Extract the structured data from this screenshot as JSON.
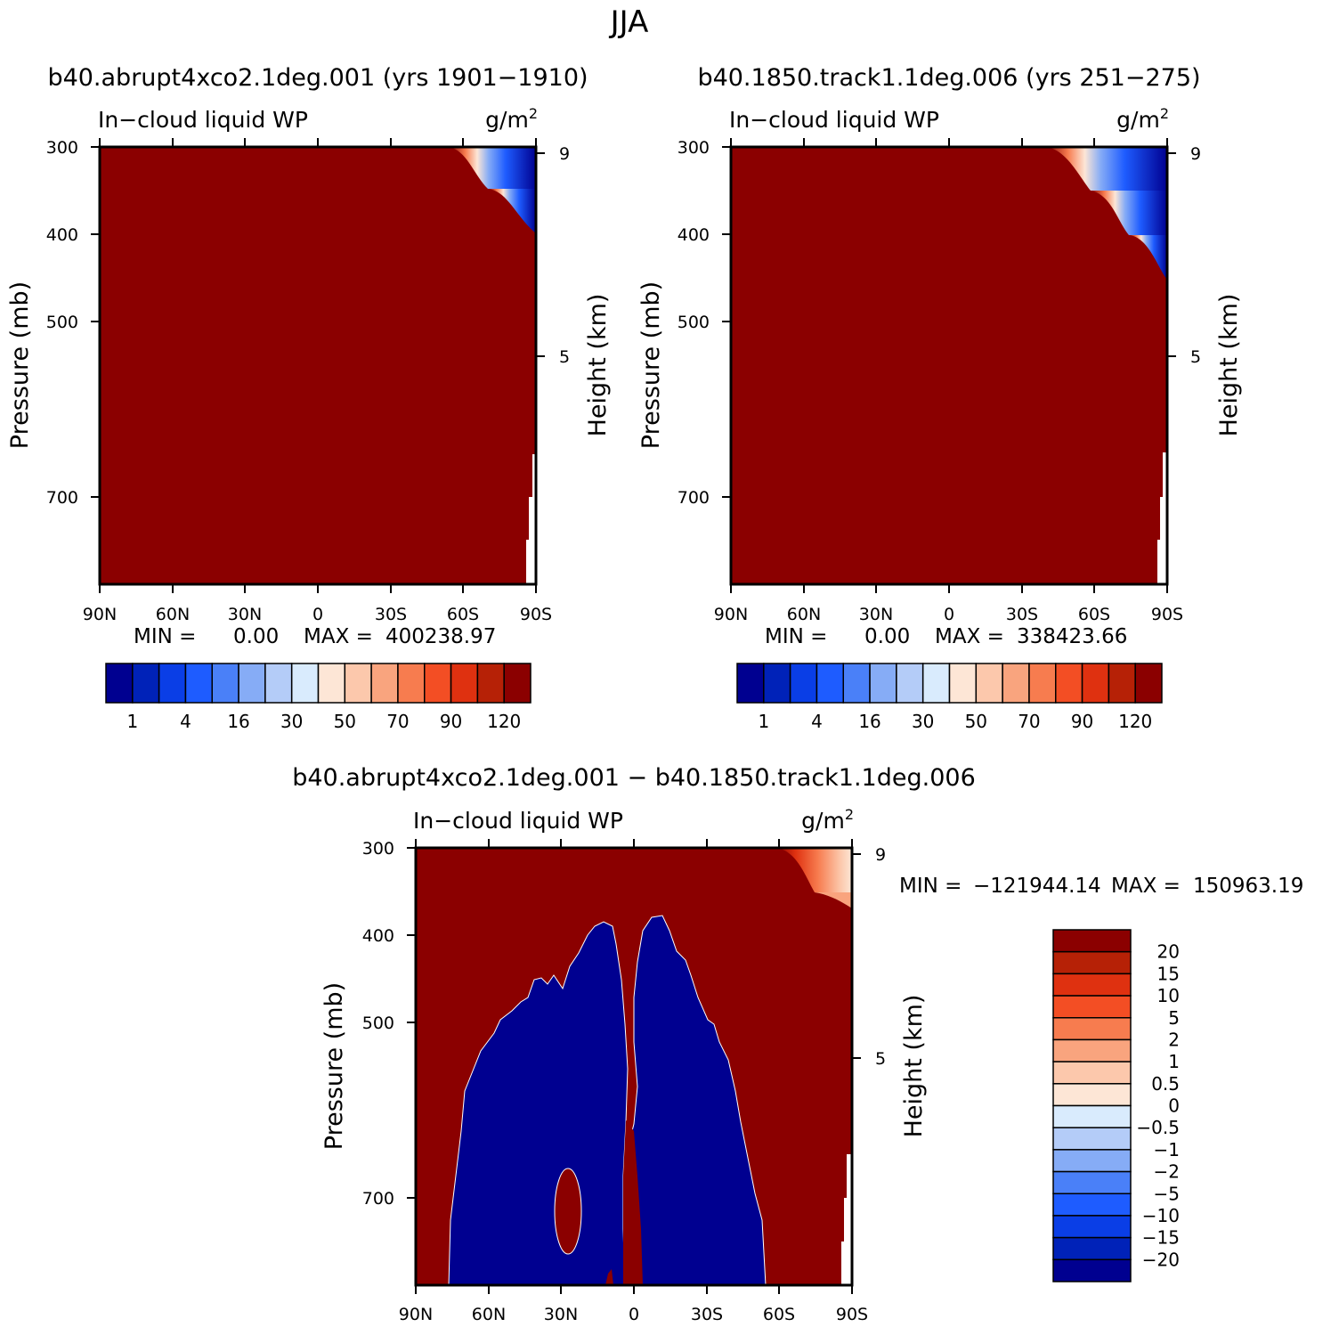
{
  "page_title": "JJA",
  "chart_data": [
    {
      "id": "panel1",
      "type": "contour",
      "title": "b40.abrupt4xco2.1deg.001 (yrs 1901−1910)",
      "variable": "In−cloud liquid WP",
      "units_base": "g/m",
      "units_exp": "2",
      "ylabel": "Pressure (mb)",
      "y2label": "Height (km)",
      "xticks": [
        "90N",
        "60N",
        "30N",
        "0",
        "30S",
        "60S",
        "90S"
      ],
      "yticks": [
        "300",
        "400",
        "500",
        "700"
      ],
      "y2ticks": [
        "9",
        "5"
      ],
      "ylim": [
        300,
        800
      ],
      "min_label": "MIN =",
      "min_value": "0.00",
      "max_label": "MAX =",
      "max_value": "400238.97",
      "colorbar": {
        "orientation": "horizontal",
        "labels": [
          "1",
          "4",
          "16",
          "30",
          "50",
          "70",
          "90",
          "120"
        ],
        "colors": [
          "#000090",
          "#0022b8",
          "#0a3ee6",
          "#1e5cff",
          "#4a80f8",
          "#86acf6",
          "#b4ccf8",
          "#d9ebfd",
          "#fde6d6",
          "#fcc8ac",
          "#f9a47e",
          "#f77c4f",
          "#f34e24",
          "#df3110",
          "#b62106",
          "#8b0000"
        ]
      }
    },
    {
      "id": "panel2",
      "type": "contour",
      "title": "b40.1850.track1.1deg.006 (yrs 251−275)",
      "variable": "In−cloud liquid WP",
      "units_base": "g/m",
      "units_exp": "2",
      "ylabel": "Pressure (mb)",
      "y2label": "Height (km)",
      "xticks": [
        "90N",
        "60N",
        "30N",
        "0",
        "30S",
        "60S",
        "90S"
      ],
      "yticks": [
        "300",
        "400",
        "500",
        "700"
      ],
      "y2ticks": [
        "9",
        "5"
      ],
      "ylim": [
        300,
        800
      ],
      "min_label": "MIN =",
      "min_value": "0.00",
      "max_label": "MAX =",
      "max_value": "338423.66",
      "colorbar": {
        "orientation": "horizontal",
        "labels": [
          "1",
          "4",
          "16",
          "30",
          "50",
          "70",
          "90",
          "120"
        ],
        "colors": [
          "#000090",
          "#0022b8",
          "#0a3ee6",
          "#1e5cff",
          "#4a80f8",
          "#86acf6",
          "#b4ccf8",
          "#d9ebfd",
          "#fde6d6",
          "#fcc8ac",
          "#f9a47e",
          "#f77c4f",
          "#f34e24",
          "#df3110",
          "#b62106",
          "#8b0000"
        ]
      }
    },
    {
      "id": "panel3",
      "type": "contour",
      "title": "b40.abrupt4xco2.1deg.001 − b40.1850.track1.1deg.006",
      "variable": "In−cloud liquid WP",
      "units_base": "g/m",
      "units_exp": "2",
      "ylabel": "Pressure (mb)",
      "y2label": "Height (km)",
      "xticks": [
        "90N",
        "60N",
        "30N",
        "0",
        "30S",
        "60S",
        "90S"
      ],
      "yticks": [
        "300",
        "400",
        "500",
        "700"
      ],
      "y2ticks": [
        "9",
        "5"
      ],
      "ylim": [
        300,
        800
      ],
      "min_label": "MIN =",
      "min_value": "−121944.14",
      "max_label": "MAX =",
      "max_value": "150963.19",
      "colorbar": {
        "orientation": "vertical",
        "labels": [
          "20",
          "15",
          "10",
          "5",
          "2",
          "1",
          "0.5",
          "0",
          "−0.5",
          "−1",
          "−2",
          "−5",
          "−10",
          "−15",
          "−20"
        ],
        "colors": [
          "#8b0000",
          "#b62106",
          "#df3110",
          "#f34e24",
          "#f77c4f",
          "#f9a47e",
          "#fcc8ac",
          "#fde6d6",
          "#d9ebfd",
          "#b4ccf8",
          "#86acf6",
          "#4a80f8",
          "#1e5cff",
          "#0a3ee6",
          "#0022b8",
          "#000090"
        ]
      }
    }
  ]
}
